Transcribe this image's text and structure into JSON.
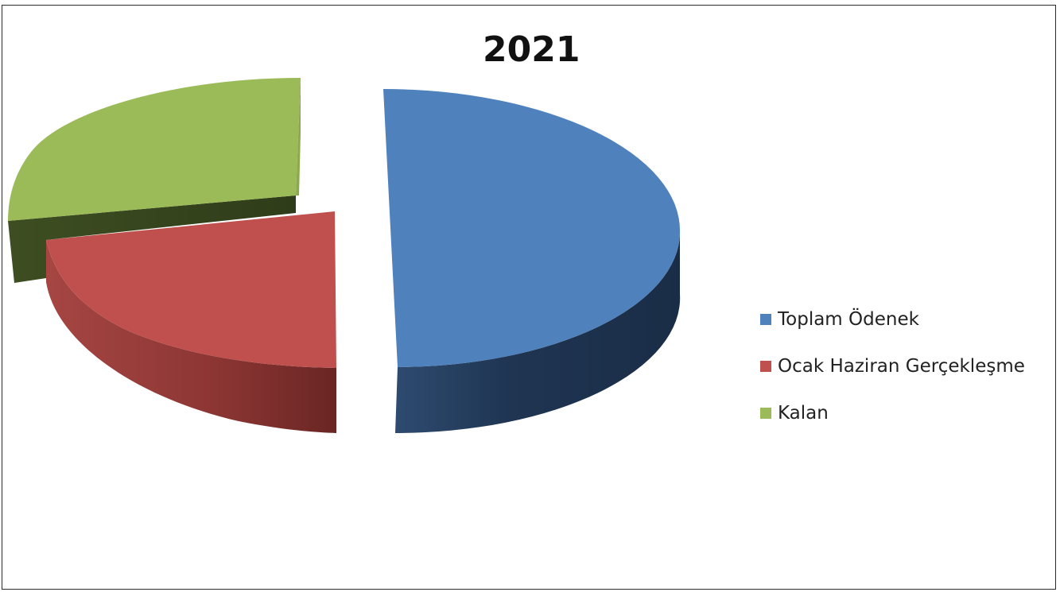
{
  "chart_data": {
    "type": "pie",
    "title": "2021",
    "legend_position": "right",
    "three_d": true,
    "exploded": true,
    "slices": [
      {
        "label": "Toplam Ödenek",
        "value": 50.0,
        "color": "#4F81BD"
      },
      {
        "label": "Ocak Haziran Gerçekleşme",
        "value": 22.0,
        "color": "#C0504D"
      },
      {
        "label": "Kalan",
        "value": 28.0,
        "color": "#9BBB59"
      }
    ]
  }
}
